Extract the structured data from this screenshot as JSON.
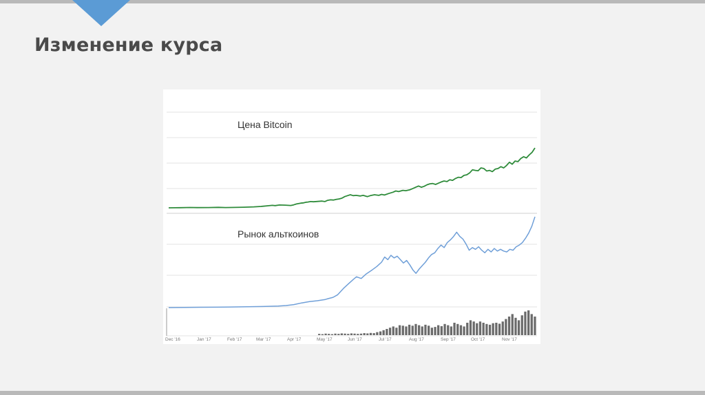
{
  "slide": {
    "title": "Изменение курса",
    "accent_color": "#5b9bd5"
  },
  "chart_data": {
    "type": "line",
    "x_labels": [
      "Dec '16",
      "Jan '17",
      "Feb '17",
      "Mar '17",
      "Apr '17",
      "May '17",
      "Jun '17",
      "Jul '17",
      "Aug '17",
      "Sep '17",
      "Oct '17",
      "Nov '17"
    ],
    "grid": true,
    "series": [
      {
        "name": "Цена Bitcoin",
        "color": "#2e8b3a",
        "points": [
          [
            0,
            0.0
          ],
          [
            0.08,
            0.02
          ],
          [
            0.15,
            0.05
          ],
          [
            0.2,
            0.03
          ],
          [
            0.28,
            0.04
          ],
          [
            0.35,
            0.08
          ],
          [
            0.4,
            0.04
          ],
          [
            0.47,
            0.07
          ],
          [
            0.53,
            0.1
          ],
          [
            0.6,
            0.15
          ],
          [
            0.65,
            0.22
          ],
          [
            0.7,
            0.33
          ],
          [
            0.73,
            0.4
          ],
          [
            0.75,
            0.35
          ],
          [
            0.78,
            0.45
          ],
          [
            0.82,
            0.43
          ],
          [
            0.86,
            0.38
          ],
          [
            0.88,
            0.48
          ],
          [
            0.9,
            0.62
          ],
          [
            0.93,
            0.75
          ],
          [
            0.95,
            0.8
          ],
          [
            0.97,
            0.9
          ],
          [
            0.98,
            0.93
          ],
          [
            1.0,
            1.0
          ],
          [
            1.02,
            0.97
          ],
          [
            1.05,
            1.03
          ],
          [
            1.08,
            1.08
          ],
          [
            1.1,
            1.0
          ],
          [
            1.12,
            1.2
          ],
          [
            1.14,
            1.28
          ],
          [
            1.16,
            1.25
          ],
          [
            1.18,
            1.35
          ],
          [
            1.2,
            1.42
          ],
          [
            1.22,
            1.55
          ],
          [
            1.24,
            1.8
          ],
          [
            1.26,
            1.95
          ],
          [
            1.28,
            2.1
          ],
          [
            1.3,
            1.95
          ],
          [
            1.32,
            2.0
          ],
          [
            1.35,
            1.9
          ],
          [
            1.37,
            2.0
          ],
          [
            1.4,
            1.8
          ],
          [
            1.42,
            1.95
          ],
          [
            1.45,
            2.1
          ],
          [
            1.48,
            2.0
          ],
          [
            1.5,
            2.15
          ],
          [
            1.52,
            2.05
          ],
          [
            1.55,
            2.3
          ],
          [
            1.58,
            2.5
          ],
          [
            1.6,
            2.7
          ],
          [
            1.62,
            2.6
          ],
          [
            1.65,
            2.8
          ],
          [
            1.67,
            2.75
          ],
          [
            1.7,
            2.9
          ],
          [
            1.72,
            3.1
          ],
          [
            1.74,
            3.3
          ],
          [
            1.76,
            3.5
          ],
          [
            1.78,
            3.3
          ],
          [
            1.8,
            3.45
          ],
          [
            1.82,
            3.7
          ],
          [
            1.84,
            3.85
          ],
          [
            1.86,
            3.9
          ],
          [
            1.88,
            3.75
          ],
          [
            1.9,
            3.95
          ],
          [
            1.92,
            4.15
          ],
          [
            1.94,
            4.3
          ],
          [
            1.96,
            4.2
          ],
          [
            1.98,
            4.5
          ],
          [
            2.0,
            4.4
          ],
          [
            2.02,
            4.7
          ],
          [
            2.04,
            4.9
          ],
          [
            2.06,
            4.85
          ],
          [
            2.08,
            5.2
          ],
          [
            2.1,
            5.3
          ],
          [
            2.12,
            5.6
          ],
          [
            2.14,
            6.1
          ],
          [
            2.16,
            6.0
          ],
          [
            2.18,
            5.95
          ],
          [
            2.2,
            6.4
          ],
          [
            2.22,
            6.3
          ],
          [
            2.24,
            5.9
          ],
          [
            2.26,
            6.0
          ],
          [
            2.28,
            5.8
          ],
          [
            2.3,
            6.2
          ],
          [
            2.32,
            6.3
          ],
          [
            2.34,
            6.6
          ],
          [
            2.36,
            6.4
          ],
          [
            2.38,
            6.8
          ],
          [
            2.4,
            7.3
          ],
          [
            2.42,
            7.0
          ],
          [
            2.44,
            7.5
          ],
          [
            2.46,
            7.4
          ],
          [
            2.48,
            7.9
          ],
          [
            2.5,
            8.2
          ],
          [
            2.52,
            8.0
          ],
          [
            2.54,
            8.5
          ],
          [
            2.56,
            8.9
          ],
          [
            2.58,
            9.6
          ]
        ]
      },
      {
        "name": "Рынок альткоинов",
        "color": "#6f9fd8",
        "points": [
          [
            0,
            0.0
          ],
          [
            0.1,
            0.02
          ],
          [
            0.2,
            0.04
          ],
          [
            0.3,
            0.05
          ],
          [
            0.4,
            0.07
          ],
          [
            0.5,
            0.1
          ],
          [
            0.6,
            0.13
          ],
          [
            0.7,
            0.18
          ],
          [
            0.75,
            0.24
          ],
          [
            0.8,
            0.35
          ],
          [
            0.85,
            0.55
          ],
          [
            0.9,
            0.7
          ],
          [
            0.95,
            0.8
          ],
          [
            1.0,
            0.95
          ],
          [
            1.02,
            1.05
          ],
          [
            1.05,
            1.2
          ],
          [
            1.08,
            1.5
          ],
          [
            1.1,
            1.9
          ],
          [
            1.12,
            2.3
          ],
          [
            1.15,
            2.8
          ],
          [
            1.18,
            3.3
          ],
          [
            1.2,
            3.6
          ],
          [
            1.23,
            3.4
          ],
          [
            1.26,
            3.9
          ],
          [
            1.3,
            4.4
          ],
          [
            1.33,
            4.8
          ],
          [
            1.36,
            5.3
          ],
          [
            1.38,
            5.9
          ],
          [
            1.4,
            5.6
          ],
          [
            1.42,
            6.1
          ],
          [
            1.44,
            5.8
          ],
          [
            1.46,
            6.0
          ],
          [
            1.48,
            5.6
          ],
          [
            1.5,
            5.2
          ],
          [
            1.52,
            5.5
          ],
          [
            1.54,
            5.0
          ],
          [
            1.56,
            4.4
          ],
          [
            1.58,
            4.0
          ],
          [
            1.6,
            4.5
          ],
          [
            1.62,
            4.9
          ],
          [
            1.64,
            5.3
          ],
          [
            1.66,
            5.8
          ],
          [
            1.68,
            6.2
          ],
          [
            1.7,
            6.4
          ],
          [
            1.72,
            6.9
          ],
          [
            1.74,
            7.3
          ],
          [
            1.76,
            7.0
          ],
          [
            1.78,
            7.6
          ],
          [
            1.8,
            7.9
          ],
          [
            1.82,
            8.3
          ],
          [
            1.84,
            8.8
          ],
          [
            1.86,
            8.3
          ],
          [
            1.88,
            8.0
          ],
          [
            1.9,
            7.4
          ],
          [
            1.92,
            6.7
          ],
          [
            1.94,
            7.0
          ],
          [
            1.96,
            6.8
          ],
          [
            1.98,
            7.1
          ],
          [
            2.0,
            6.7
          ],
          [
            2.02,
            6.4
          ],
          [
            2.04,
            6.8
          ],
          [
            2.06,
            6.5
          ],
          [
            2.08,
            6.9
          ],
          [
            2.1,
            6.6
          ],
          [
            2.12,
            6.8
          ],
          [
            2.14,
            6.6
          ],
          [
            2.16,
            6.5
          ],
          [
            2.18,
            6.8
          ],
          [
            2.2,
            6.7
          ],
          [
            2.22,
            7.1
          ],
          [
            2.24,
            7.3
          ],
          [
            2.26,
            7.6
          ],
          [
            2.28,
            8.1
          ],
          [
            2.3,
            8.7
          ],
          [
            2.32,
            9.5
          ],
          [
            2.34,
            10.6
          ]
        ]
      }
    ],
    "volume": [
      0.05,
      0.04,
      0.06,
      0.05,
      0.04,
      0.06,
      0.05,
      0.07,
      0.06,
      0.05,
      0.07,
      0.06,
      0.05,
      0.06,
      0.08,
      0.07,
      0.09,
      0.08,
      0.12,
      0.15,
      0.2,
      0.25,
      0.3,
      0.35,
      0.3,
      0.4,
      0.38,
      0.35,
      0.42,
      0.38,
      0.45,
      0.4,
      0.35,
      0.42,
      0.38,
      0.3,
      0.33,
      0.4,
      0.36,
      0.45,
      0.4,
      0.35,
      0.5,
      0.45,
      0.4,
      0.35,
      0.5,
      0.6,
      0.55,
      0.48,
      0.55,
      0.5,
      0.45,
      0.42,
      0.48,
      0.5,
      0.46,
      0.55,
      0.65,
      0.75,
      0.85,
      0.7,
      0.6,
      0.8,
      0.95,
      1.0,
      0.85,
      0.75
    ]
  }
}
